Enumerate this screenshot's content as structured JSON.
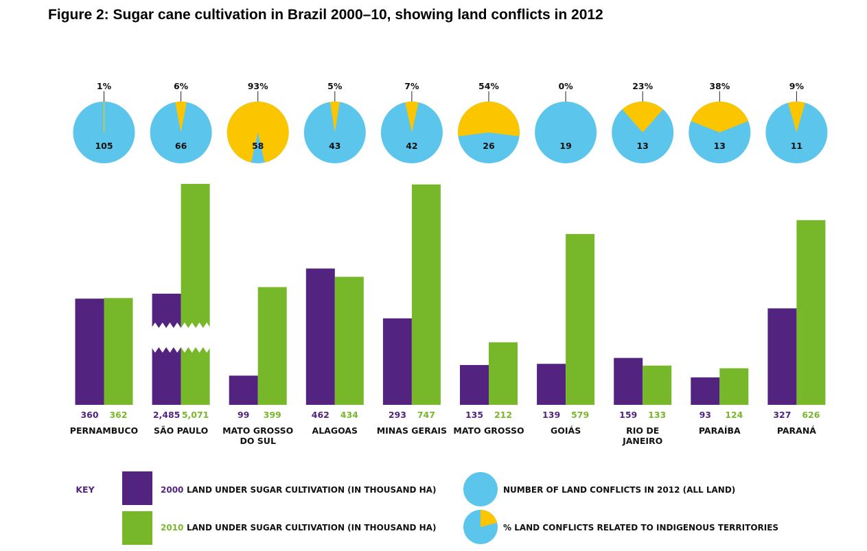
{
  "title": "Figure 2: Sugar cane cultivation in Brazil 2000–10, showing land conflicts in 2012",
  "chart_data": {
    "type": "bar",
    "categories": [
      "PERNAMBUCO",
      "SÃO PAULO",
      "MATO GROSSO DO SUL",
      "ALAGOAS",
      "MINAS GERAIS",
      "MATO GROSSO",
      "GOIÁS",
      "RIO DE JANEIRO",
      "PARAÍBA",
      "PARANÁ"
    ],
    "category_lines": [
      [
        "PERNAMBUCO"
      ],
      [
        "SÃO PAULO"
      ],
      [
        "MATO GROSSO",
        "DO SUL"
      ],
      [
        "ALAGOAS"
      ],
      [
        "MINAS GERAIS"
      ],
      [
        "MATO GROSSO"
      ],
      [
        "GOIÁS"
      ],
      [
        "RIO DE",
        "JANEIRO"
      ],
      [
        "PARAÍBA"
      ],
      [
        "PARANÁ"
      ]
    ],
    "series": [
      {
        "name": "2000",
        "values": [
          360,
          2485,
          99,
          462,
          293,
          135,
          139,
          159,
          93,
          327
        ],
        "labels": [
          "360",
          "2,485",
          "99",
          "462",
          "293",
          "135",
          "139",
          "159",
          "93",
          "327"
        ]
      },
      {
        "name": "2010",
        "values": [
          362,
          5071,
          399,
          434,
          747,
          212,
          579,
          133,
          124,
          626
        ],
        "labels": [
          "362",
          "5,071",
          "399",
          "434",
          "747",
          "212",
          "579",
          "133",
          "124",
          "626"
        ]
      }
    ],
    "broken_axis_category": "SÃO PAULO",
    "pies": {
      "conflicts": [
        105,
        66,
        58,
        43,
        42,
        26,
        19,
        13,
        13,
        11
      ],
      "indigenous_pct": [
        1,
        6,
        93,
        5,
        7,
        54,
        0,
        23,
        38,
        9
      ],
      "pct_labels": [
        "1%",
        "6%",
        "93%",
        "5%",
        "7%",
        "54%",
        "0%",
        "23%",
        "38%",
        "9%"
      ]
    },
    "colors": {
      "2000": "#52247f",
      "2010": "#77b82a",
      "conflicts": "#5bc5ec",
      "indigenous": "#fbc600"
    },
    "key": {
      "title": "KEY",
      "bar_2000_year": "2000",
      "bar_2000": "LAND UNDER SUGAR CULTIVATION (IN THOUSAND HA)",
      "bar_2010_year": "2010",
      "bar_2010": "LAND UNDER SUGAR CULTIVATION (IN THOUSAND HA)",
      "pie_all": "NUMBER OF LAND CONFLICTS IN 2012 (ALL LAND)",
      "pie_indigenous": "% LAND CONFLICTS RELATED TO INDIGENOUS TERRITORIES"
    }
  }
}
